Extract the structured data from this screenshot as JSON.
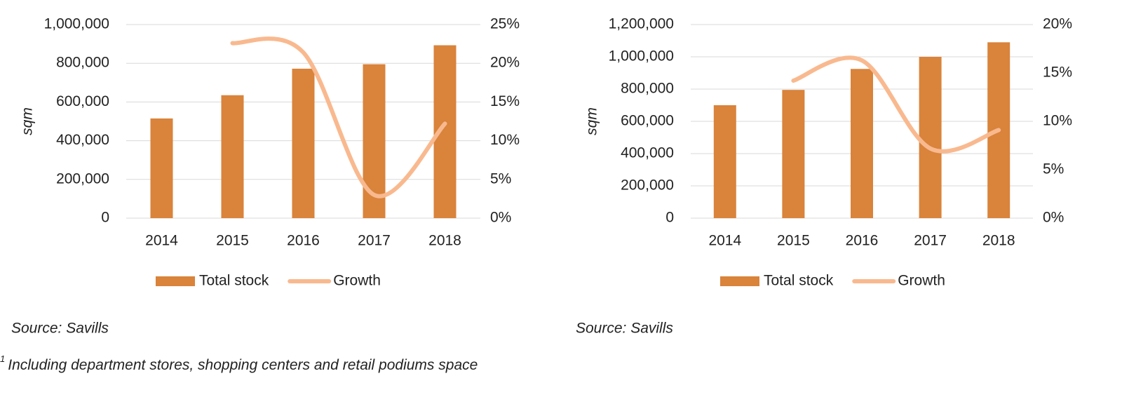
{
  "chart_data": [
    {
      "type": "combo",
      "y_label": "sqm",
      "categories": [
        "2014",
        "2015",
        "2016",
        "2017",
        "2018"
      ],
      "series": [
        {
          "name": "Total stock",
          "type": "bar",
          "color": "#d9833b",
          "values": [
            515000,
            635000,
            772000,
            795000,
            893000
          ]
        },
        {
          "name": "Growth",
          "type": "line",
          "axis": "y2",
          "color": "#f9b98f",
          "values": [
            null,
            22.6,
            21.4,
            3.0,
            12.2
          ]
        }
      ],
      "ylim": [
        0,
        1000000
      ],
      "yticks": [
        0,
        {
          "value": 200000,
          "label": "200,000"
        },
        {
          "value": 400000,
          "label": "400,000"
        },
        {
          "value": 600000,
          "label": "600,000"
        },
        {
          "value": 800000,
          "label": "800,000"
        },
        {
          "value": 1000000,
          "label": "1,000,000"
        }
      ],
      "y2lim": [
        0,
        25
      ],
      "y2ticks": [
        {
          "value": 0,
          "label": "0%"
        },
        {
          "value": 5,
          "label": "5%"
        },
        {
          "value": 10,
          "label": "10%"
        },
        {
          "value": 15,
          "label": "15%"
        },
        {
          "value": 20,
          "label": "20%"
        },
        {
          "value": 25,
          "label": "25%"
        }
      ],
      "grid": true,
      "legend": "bottom",
      "source": "Source: Savills"
    },
    {
      "type": "combo",
      "y_label": "sqm",
      "categories": [
        "2014",
        "2015",
        "2016",
        "2017",
        "2018"
      ],
      "series": [
        {
          "name": "Total stock",
          "type": "bar",
          "color": "#d9833b",
          "values": [
            700000,
            795000,
            925000,
            1000000,
            1090000
          ]
        },
        {
          "name": "Growth",
          "type": "line",
          "axis": "y2",
          "color": "#f9b98f",
          "values": [
            null,
            14.2,
            16.3,
            7.2,
            9.1
          ]
        }
      ],
      "ylim": [
        0,
        1200000
      ],
      "yticks": [
        0,
        {
          "value": 200000,
          "label": "200,000"
        },
        {
          "value": 400000,
          "label": "400,000"
        },
        {
          "value": 600000,
          "label": "600,000"
        },
        {
          "value": 800000,
          "label": "800,000"
        },
        {
          "value": 1000000,
          "label": "1,000,000"
        },
        {
          "value": 1200000,
          "label": "1,200,000"
        }
      ],
      "y2lim": [
        0,
        20
      ],
      "y2ticks": [
        {
          "value": 0,
          "label": "0%"
        },
        {
          "value": 5,
          "label": "5%"
        },
        {
          "value": 10,
          "label": "10%"
        },
        {
          "value": 15,
          "label": "15%"
        },
        {
          "value": 20,
          "label": "20%"
        }
      ],
      "grid": true,
      "legend": "bottom",
      "source": "Source: Savills"
    }
  ],
  "footnote": {
    "marker": "1",
    "text": "Including department stores, shopping centers and retail podiums space"
  }
}
